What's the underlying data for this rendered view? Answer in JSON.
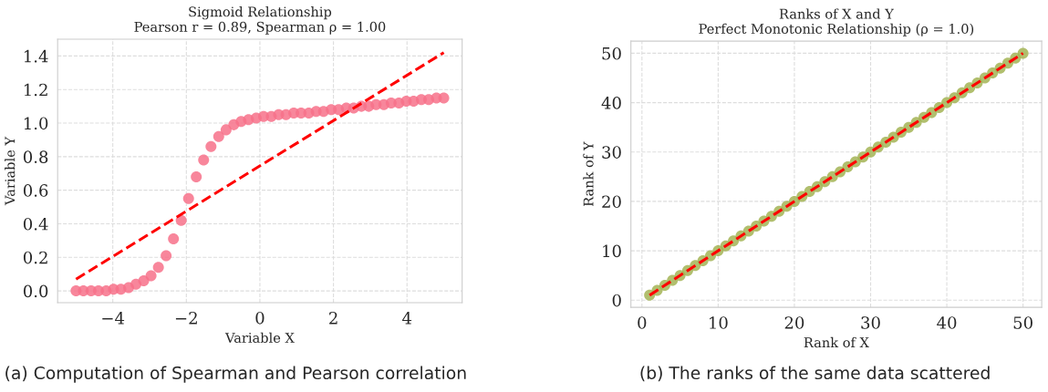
{
  "chart_data": [
    {
      "type": "scatter",
      "title": "Sigmoid Relationship\nPearson r = 0.89, Spearman ρ = 1.00",
      "xlabel": "Variable X",
      "ylabel": "Variable Y",
      "x": [
        -5.0,
        -4.8,
        -4.59,
        -4.39,
        -4.18,
        -3.98,
        -3.78,
        -3.57,
        -3.37,
        -3.16,
        -2.96,
        -2.76,
        -2.55,
        -2.35,
        -2.14,
        -1.94,
        -1.73,
        -1.53,
        -1.33,
        -1.12,
        -0.92,
        -0.71,
        -0.51,
        -0.31,
        -0.1,
        0.1,
        0.31,
        0.51,
        0.71,
        0.92,
        1.12,
        1.33,
        1.53,
        1.73,
        1.94,
        2.14,
        2.35,
        2.55,
        2.76,
        2.96,
        3.16,
        3.37,
        3.57,
        3.78,
        3.98,
        4.18,
        4.39,
        4.59,
        4.8,
        5.0
      ],
      "series": [
        {
          "type": "scatter",
          "color": "#f77189",
          "marker": "circle",
          "values": [
            0,
            0,
            0,
            0,
            0,
            0.01,
            0.01,
            0.02,
            0.04,
            0.06,
            0.09,
            0.14,
            0.21,
            0.31,
            0.42,
            0.55,
            0.68,
            0.78,
            0.86,
            0.92,
            0.96,
            0.99,
            1.01,
            1.02,
            1.03,
            1.04,
            1.04,
            1.05,
            1.05,
            1.06,
            1.06,
            1.06,
            1.07,
            1.07,
            1.08,
            1.08,
            1.09,
            1.09,
            1.1,
            1.1,
            1.11,
            1.11,
            1.12,
            1.12,
            1.13,
            1.13,
            1.14,
            1.14,
            1.15,
            1.15
          ]
        },
        {
          "type": "line",
          "color": "#ff0000",
          "line_style": "dashed",
          "x": [
            -5,
            5
          ],
          "values": [
            0.07,
            1.42
          ]
        }
      ],
      "xlim": [
        -5.5,
        5.5
      ],
      "xticks": [
        {
          "value": -4,
          "label": "−4"
        },
        {
          "value": -2,
          "label": "−2"
        },
        0,
        2,
        4
      ],
      "ylim": [
        -0.07,
        1.5
      ],
      "yticks": [
        {
          "value": 0,
          "label": "0.0"
        },
        0.2,
        0.4,
        0.6,
        0.8,
        {
          "value": 1,
          "label": "1.0"
        },
        1.2,
        1.4
      ],
      "grid": true,
      "annotations": [
        "(a) Computation of Spearman and Pearson correlation"
      ]
    },
    {
      "type": "scatter",
      "title": "Ranks of X and Y\nPerfect Monotonic Relationship (ρ = 1.0)",
      "xlabel": "Rank of X",
      "ylabel": "Rank of Y",
      "x": [
        1,
        2,
        3,
        4,
        5,
        6,
        7,
        8,
        9,
        10,
        11,
        12,
        13,
        14,
        15,
        16,
        17,
        18,
        19,
        20,
        21,
        22,
        23,
        24,
        25,
        26,
        27,
        28,
        29,
        30,
        31,
        32,
        33,
        34,
        35,
        36,
        37,
        38,
        39,
        40,
        41,
        42,
        43,
        44,
        45,
        46,
        47,
        48,
        49,
        50
      ],
      "series": [
        {
          "type": "scatter",
          "color": "#a3b455",
          "marker": "circle",
          "values": [
            1,
            2,
            3,
            4,
            5,
            6,
            7,
            8,
            9,
            10,
            11,
            12,
            13,
            14,
            15,
            16,
            17,
            18,
            19,
            20,
            21,
            22,
            23,
            24,
            25,
            26,
            27,
            28,
            29,
            30,
            31,
            32,
            33,
            34,
            35,
            36,
            37,
            38,
            39,
            40,
            41,
            42,
            43,
            44,
            45,
            46,
            47,
            48,
            49,
            50
          ]
        },
        {
          "type": "line",
          "color": "#ff0000",
          "line_style": "dashed",
          "x": [
            1,
            50
          ],
          "values": [
            1,
            50
          ]
        }
      ],
      "xlim": [
        -1.45,
        52.45
      ],
      "xticks": [
        0,
        10,
        20,
        30,
        40,
        50
      ],
      "ylim": [
        -1.45,
        52.45
      ],
      "yticks": [
        0,
        10,
        20,
        30,
        40,
        50
      ],
      "grid": true,
      "annotations": [
        "(b) The ranks of the same data scattered"
      ]
    }
  ]
}
